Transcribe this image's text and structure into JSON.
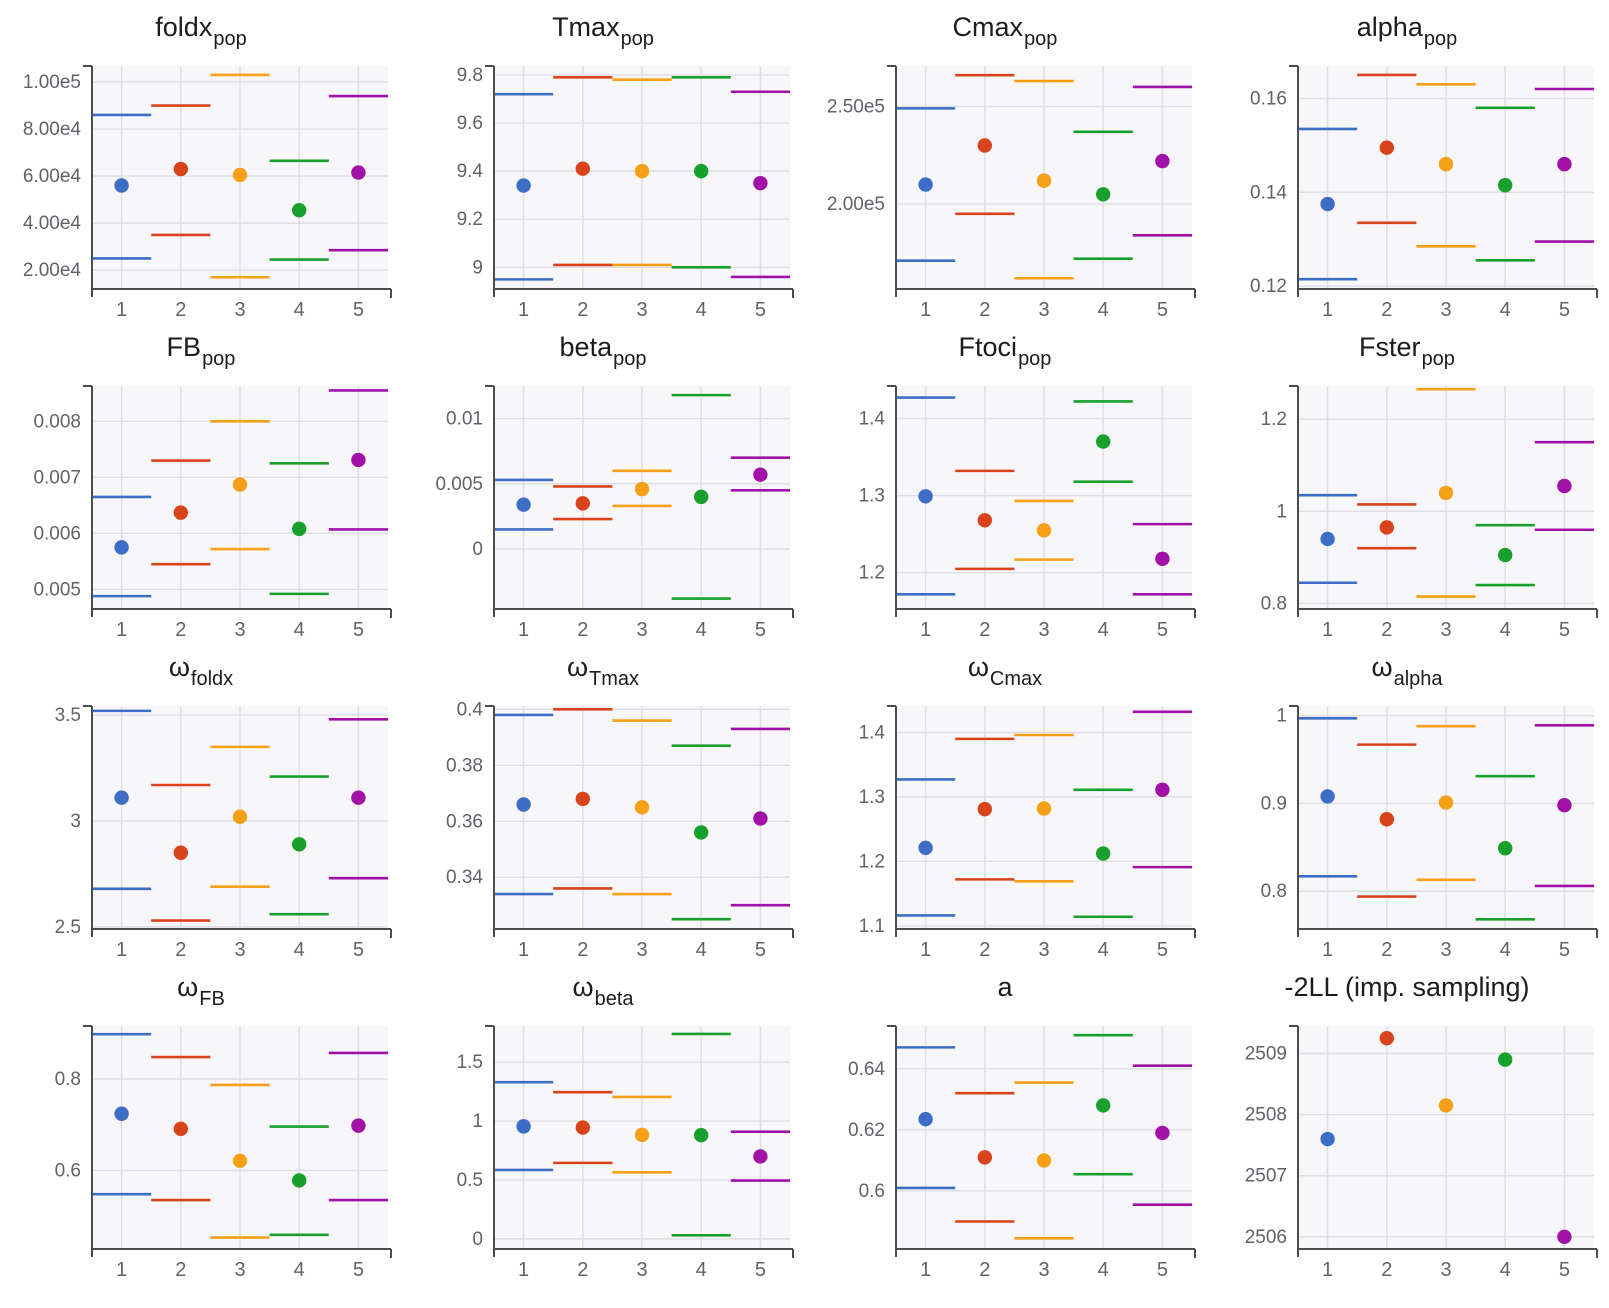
{
  "figure": {
    "description": "Grid of population parameter estimates with confidence intervals across 5 runs",
    "columns": 4,
    "rows": 4
  },
  "layout": {
    "panel_bg": "#f7f7fa",
    "grid_color": "#dddde3",
    "axis_color": "#4d4d4d",
    "tick_color": "#5f6368",
    "title_color": "#1c1c1c",
    "series_colors": [
      "#3e6dc6",
      "#d8431c",
      "#f5a016",
      "#17a02b",
      "#a111a7"
    ],
    "x_categories": [
      1,
      2,
      3,
      4,
      5
    ],
    "xlim": [
      0.5,
      5.5
    ],
    "grid": "on",
    "legend": "none"
  },
  "chart_data": [
    {
      "id": "foldx_pop",
      "type": "scatter",
      "title": "foldx",
      "title_sub": "pop",
      "x": [
        1,
        2,
        3,
        4,
        5
      ],
      "y": [
        56000,
        63000,
        60500,
        45500,
        61500
      ],
      "y_lower": [
        25000,
        35000,
        17000,
        24500,
        28500
      ],
      "y_upper": [
        86000,
        90000,
        103000,
        66500,
        94000
      ],
      "ylim": [
        12000,
        106800
      ],
      "ytick_values": [
        20000,
        40000,
        60000,
        80000,
        100000
      ],
      "ytick_labels": [
        "2.00e4",
        "4.00e4",
        "6.00e4",
        "8.00e4",
        "1.00e5"
      ]
    },
    {
      "id": "Tmax_pop",
      "type": "scatter",
      "title": "Tmax",
      "title_sub": "pop",
      "x": [
        1,
        2,
        3,
        4,
        5
      ],
      "y": [
        9.34,
        9.41,
        9.4,
        9.4,
        9.35
      ],
      "y_lower": [
        8.95,
        9.01,
        9.01,
        9.0,
        8.96
      ],
      "y_upper": [
        9.72,
        9.79,
        9.78,
        9.79,
        9.73
      ],
      "ylim": [
        8.91,
        9.837
      ],
      "ytick_values": [
        9,
        9.2,
        9.4,
        9.6,
        9.8
      ],
      "ytick_labels": [
        "9",
        "9.2",
        "9.4",
        "9.6",
        "9.8"
      ]
    },
    {
      "id": "Cmax_pop",
      "type": "scatter",
      "title": "Cmax",
      "title_sub": "pop",
      "x": [
        1,
        2,
        3,
        4,
        5
      ],
      "y": [
        210000,
        230000,
        212000,
        205000,
        222000
      ],
      "y_lower": [
        171000,
        195000,
        162000,
        172000,
        184000
      ],
      "y_upper": [
        249000,
        266000,
        263000,
        237000,
        260000
      ],
      "ylim": [
        156500,
        270700
      ],
      "ytick_values": [
        200000,
        250000
      ],
      "ytick_labels": [
        "2.00e5",
        "2.50e5"
      ]
    },
    {
      "id": "alpha_pop",
      "type": "scatter",
      "title": "alpha",
      "title_sub": "pop",
      "x": [
        1,
        2,
        3,
        4,
        5
      ],
      "y": [
        0.1375,
        0.1495,
        0.146,
        0.1415,
        0.146
      ],
      "y_lower": [
        0.1215,
        0.1335,
        0.1285,
        0.1255,
        0.1295
      ],
      "y_upper": [
        0.1535,
        0.165,
        0.163,
        0.158,
        0.162
      ],
      "ylim": [
        0.1194,
        0.1669
      ],
      "ytick_values": [
        0.12,
        0.14,
        0.16
      ],
      "ytick_labels": [
        "0.12",
        "0.14",
        "0.16"
      ]
    },
    {
      "id": "FB_pop",
      "type": "scatter",
      "title": "FB",
      "title_sub": "pop",
      "x": [
        1,
        2,
        3,
        4,
        5
      ],
      "y": [
        0.00575,
        0.00637,
        0.00687,
        0.00608,
        0.00731
      ],
      "y_lower": [
        0.00488,
        0.00545,
        0.00572,
        0.00492,
        0.00607
      ],
      "y_upper": [
        0.00665,
        0.0073,
        0.008,
        0.00725,
        0.00855
      ],
      "ylim": [
        0.00465,
        0.00863
      ],
      "ytick_values": [
        0.005,
        0.006,
        0.007,
        0.008
      ],
      "ytick_labels": [
        "0.005",
        "0.006",
        "0.007",
        "0.008"
      ]
    },
    {
      "id": "beta_pop",
      "type": "scatter",
      "title": "beta",
      "title_sub": "pop",
      "x": [
        1,
        2,
        3,
        4,
        5
      ],
      "y": [
        0.0034,
        0.0035,
        0.0046,
        0.004,
        0.0057
      ],
      "y_lower": [
        0.0015,
        0.0023,
        0.0033,
        -0.0038,
        0.0045
      ],
      "y_upper": [
        0.0053,
        0.0048,
        0.006,
        0.0118,
        0.007
      ],
      "ylim": [
        -0.0046,
        0.0125
      ],
      "ytick_values": [
        0,
        0.005,
        0.01
      ],
      "ytick_labels": [
        "0",
        "0.005",
        "0.01"
      ]
    },
    {
      "id": "Ftoci_pop",
      "type": "scatter",
      "title": "Ftoci",
      "title_sub": "pop",
      "x": [
        1,
        2,
        3,
        4,
        5
      ],
      "y": [
        1.299,
        1.268,
        1.255,
        1.37,
        1.218
      ],
      "y_lower": [
        1.172,
        1.205,
        1.217,
        1.318,
        1.172
      ],
      "y_upper": [
        1.427,
        1.332,
        1.293,
        1.422,
        1.263
      ],
      "ylim": [
        1.153,
        1.442
      ],
      "ytick_values": [
        1.2,
        1.3,
        1.4
      ],
      "ytick_labels": [
        "1.2",
        "1.3",
        "1.4"
      ]
    },
    {
      "id": "Fster_pop",
      "type": "scatter",
      "title": "Fster",
      "title_sub": "pop",
      "x": [
        1,
        2,
        3,
        4,
        5
      ],
      "y": [
        0.94,
        0.965,
        1.04,
        0.905,
        1.055
      ],
      "y_lower": [
        0.845,
        0.92,
        0.815,
        0.84,
        0.96
      ],
      "y_upper": [
        1.035,
        1.015,
        1.265,
        0.97,
        1.15
      ],
      "ylim": [
        0.788,
        1.272
      ],
      "ytick_values": [
        0.8,
        1,
        1.2
      ],
      "ytick_labels": [
        "0.8",
        "1",
        "1.2"
      ]
    },
    {
      "id": "omega_foldx",
      "type": "scatter",
      "title": "ω",
      "title_sub": "foldx",
      "x": [
        1,
        2,
        3,
        4,
        5
      ],
      "y": [
        3.11,
        2.85,
        3.02,
        2.89,
        3.11
      ],
      "y_lower": [
        2.68,
        2.53,
        2.69,
        2.56,
        2.73
      ],
      "y_upper": [
        3.52,
        3.17,
        3.35,
        3.21,
        3.48
      ],
      "ylim": [
        2.49,
        3.543
      ],
      "ytick_values": [
        2.5,
        3,
        3.5
      ],
      "ytick_labels": [
        "2.5",
        "3",
        "3.5"
      ]
    },
    {
      "id": "omega_Tmax",
      "type": "scatter",
      "title": "ω",
      "title_sub": "Tmax",
      "x": [
        1,
        2,
        3,
        4,
        5
      ],
      "y": [
        0.366,
        0.368,
        0.365,
        0.356,
        0.361
      ],
      "y_lower": [
        0.334,
        0.336,
        0.334,
        0.325,
        0.33
      ],
      "y_upper": [
        0.398,
        0.4,
        0.396,
        0.387,
        0.393
      ],
      "ylim": [
        0.3215,
        0.4012
      ],
      "ytick_values": [
        0.34,
        0.36,
        0.38,
        0.4
      ],
      "ytick_labels": [
        "0.34",
        "0.36",
        "0.38",
        "0.4"
      ]
    },
    {
      "id": "omega_Cmax",
      "type": "scatter",
      "title": "ω",
      "title_sub": "Cmax",
      "x": [
        1,
        2,
        3,
        4,
        5
      ],
      "y": [
        1.221,
        1.281,
        1.282,
        1.212,
        1.311
      ],
      "y_lower": [
        1.116,
        1.172,
        1.169,
        1.114,
        1.191
      ],
      "y_upper": [
        1.327,
        1.39,
        1.396,
        1.311,
        1.432
      ],
      "ylim": [
        1.095,
        1.441
      ],
      "ytick_values": [
        1.1,
        1.2,
        1.3,
        1.4
      ],
      "ytick_labels": [
        "1.1",
        "1.2",
        "1.3",
        "1.4"
      ]
    },
    {
      "id": "omega_alpha",
      "type": "scatter",
      "title": "ω",
      "title_sub": "alpha",
      "x": [
        1,
        2,
        3,
        4,
        5
      ],
      "y": [
        0.908,
        0.882,
        0.901,
        0.849,
        0.898
      ],
      "y_lower": [
        0.817,
        0.794,
        0.813,
        0.768,
        0.806
      ],
      "y_upper": [
        0.997,
        0.967,
        0.988,
        0.931,
        0.989
      ],
      "ylim": [
        0.757,
        1.011
      ],
      "ytick_values": [
        0.8,
        0.9,
        1
      ],
      "ytick_labels": [
        "0.8",
        "0.9",
        "1"
      ]
    },
    {
      "id": "omega_FB",
      "type": "scatter",
      "title": "ω",
      "title_sub": "FB",
      "x": [
        1,
        2,
        3,
        4,
        5
      ],
      "y": [
        0.724,
        0.691,
        0.621,
        0.578,
        0.698
      ],
      "y_lower": [
        0.548,
        0.535,
        0.453,
        0.459,
        0.535
      ],
      "y_upper": [
        0.898,
        0.848,
        0.787,
        0.696,
        0.857
      ],
      "ylim": [
        0.428,
        0.916
      ],
      "ytick_values": [
        0.6,
        0.8
      ],
      "ytick_labels": [
        "0.6",
        "0.8"
      ]
    },
    {
      "id": "omega_beta",
      "type": "scatter",
      "title": "ω",
      "title_sub": "beta",
      "x": [
        1,
        2,
        3,
        4,
        5
      ],
      "y": [
        0.955,
        0.945,
        0.882,
        0.88,
        0.7
      ],
      "y_lower": [
        0.585,
        0.645,
        0.565,
        0.03,
        0.495
      ],
      "y_upper": [
        1.33,
        1.245,
        1.205,
        1.74,
        0.91
      ],
      "ylim": [
        -0.086,
        1.807
      ],
      "ytick_values": [
        0,
        0.5,
        1,
        1.5
      ],
      "ytick_labels": [
        "0",
        "0.5",
        "1",
        "1.5"
      ]
    },
    {
      "id": "a",
      "type": "scatter",
      "title": "a",
      "title_sub": "",
      "x": [
        1,
        2,
        3,
        4,
        5
      ],
      "y": [
        0.6235,
        0.611,
        0.61,
        0.628,
        0.619
      ],
      "y_lower": [
        0.601,
        0.59,
        0.5845,
        0.6055,
        0.5955
      ],
      "y_upper": [
        0.647,
        0.632,
        0.6355,
        0.651,
        0.641
      ],
      "ylim": [
        0.581,
        0.654
      ],
      "ytick_values": [
        0.6,
        0.62,
        0.64
      ],
      "ytick_labels": [
        "0.6",
        "0.62",
        "0.64"
      ]
    },
    {
      "id": "neg2LL",
      "type": "scatter",
      "title": "-2LL (imp. sampling)",
      "title_sub": "",
      "x": [
        1,
        2,
        3,
        4,
        5
      ],
      "y": [
        2507.6,
        2509.25,
        2508.15,
        2508.9,
        2506.0
      ],
      "y_lower": null,
      "y_upper": null,
      "ylim": [
        2505.8,
        2509.45
      ],
      "ytick_values": [
        2506,
        2507,
        2508,
        2509
      ],
      "ytick_labels": [
        "2506",
        "2507",
        "2508",
        "2509"
      ]
    }
  ]
}
